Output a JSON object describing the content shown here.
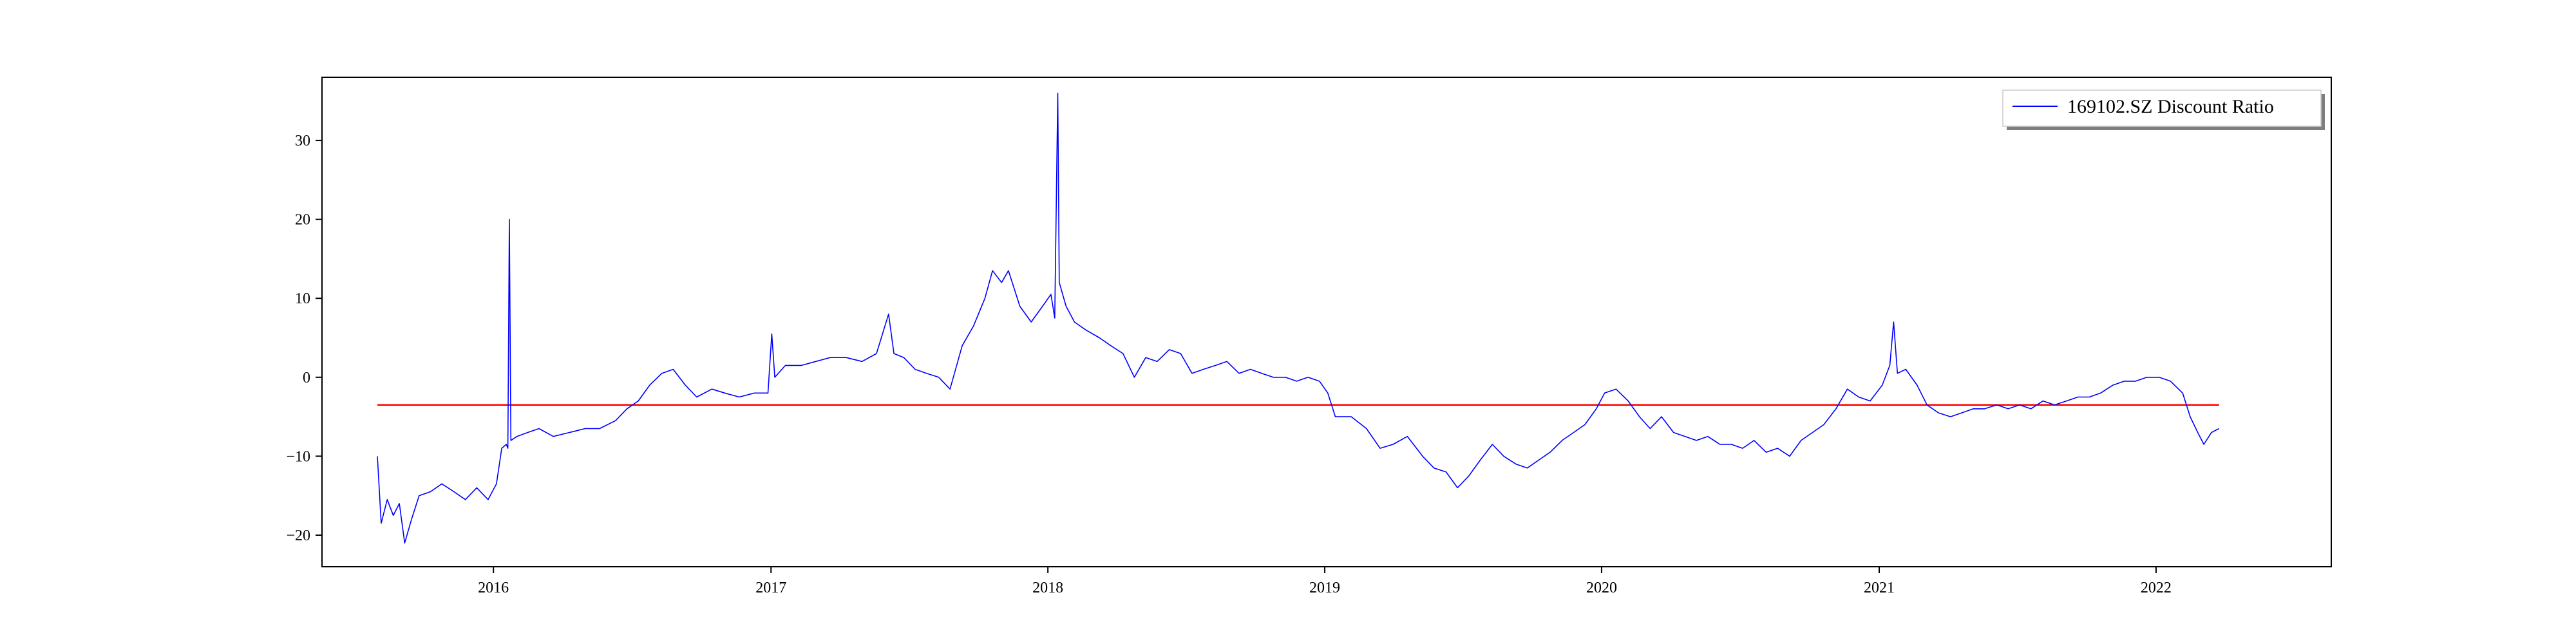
{
  "chart_data": {
    "type": "line",
    "title": "",
    "xlabel": "",
    "ylabel": "",
    "xlim": [
      "2015-05-20",
      "2022-08-20"
    ],
    "ylim": [
      -24,
      38
    ],
    "grid": false,
    "legend": {
      "placement": "top-right",
      "entries": [
        "169102.SZ Discount Ratio"
      ]
    },
    "x_ticks": [
      "2016",
      "2017",
      "2018",
      "2019",
      "2020",
      "2021",
      "2022"
    ],
    "y_ticks": [
      -20,
      -10,
      0,
      10,
      20,
      30
    ],
    "colors": {
      "series": "#0000ff",
      "reference": "#ff0000"
    },
    "series": [
      {
        "name": "169102.SZ Discount Ratio",
        "color": "#0000ff",
        "points": [
          [
            "2015-08-01",
            -10
          ],
          [
            "2015-08-06",
            -18.5
          ],
          [
            "2015-08-14",
            -15.5
          ],
          [
            "2015-08-22",
            -17.5
          ],
          [
            "2015-08-30",
            -16
          ],
          [
            "2015-09-06",
            -21
          ],
          [
            "2015-09-15",
            -18
          ],
          [
            "2015-09-25",
            -15
          ],
          [
            "2015-10-10",
            -14.5
          ],
          [
            "2015-10-25",
            -13.5
          ],
          [
            "2015-11-10",
            -14.5
          ],
          [
            "2015-11-25",
            -15.5
          ],
          [
            "2015-12-10",
            -14
          ],
          [
            "2015-12-25",
            -15.5
          ],
          [
            "2016-01-05",
            -13.5
          ],
          [
            "2016-01-12",
            -9
          ],
          [
            "2016-01-18",
            -8.5
          ],
          [
            "2016-01-20",
            -9
          ],
          [
            "2016-01-22",
            20
          ],
          [
            "2016-01-24",
            -8
          ],
          [
            "2016-02-01",
            -7.5
          ],
          [
            "2016-02-15",
            -7
          ],
          [
            "2016-03-01",
            -6.5
          ],
          [
            "2016-03-20",
            -7.5
          ],
          [
            "2016-04-10",
            -7
          ],
          [
            "2016-05-01",
            -6.5
          ],
          [
            "2016-05-20",
            -6.5
          ],
          [
            "2016-06-10",
            -5.5
          ],
          [
            "2016-06-25",
            -4
          ],
          [
            "2016-07-10",
            -3
          ],
          [
            "2016-07-25",
            -1
          ],
          [
            "2016-08-10",
            0.5
          ],
          [
            "2016-08-25",
            1
          ],
          [
            "2016-09-10",
            -1
          ],
          [
            "2016-09-25",
            -2.5
          ],
          [
            "2016-10-15",
            -1.5
          ],
          [
            "2016-11-01",
            -2
          ],
          [
            "2016-11-20",
            -2.5
          ],
          [
            "2016-12-10",
            -2
          ],
          [
            "2016-12-28",
            -2
          ],
          [
            "2017-01-02",
            5.5
          ],
          [
            "2017-01-06",
            0
          ],
          [
            "2017-01-20",
            1.5
          ],
          [
            "2017-02-10",
            1.5
          ],
          [
            "2017-03-01",
            2
          ],
          [
            "2017-03-20",
            2.5
          ],
          [
            "2017-04-10",
            2.5
          ],
          [
            "2017-05-01",
            2
          ],
          [
            "2017-05-20",
            3
          ],
          [
            "2017-06-05",
            8
          ],
          [
            "2017-06-12",
            3
          ],
          [
            "2017-06-25",
            2.5
          ],
          [
            "2017-07-10",
            1
          ],
          [
            "2017-07-25",
            0.5
          ],
          [
            "2017-08-10",
            0
          ],
          [
            "2017-08-25",
            -1.5
          ],
          [
            "2017-09-10",
            4
          ],
          [
            "2017-09-25",
            6.5
          ],
          [
            "2017-10-10",
            10
          ],
          [
            "2017-10-20",
            13.5
          ],
          [
            "2017-11-01",
            12
          ],
          [
            "2017-11-10",
            13.5
          ],
          [
            "2017-11-25",
            9
          ],
          [
            "2017-12-10",
            7
          ],
          [
            "2017-12-25",
            9
          ],
          [
            "2018-01-05",
            10.5
          ],
          [
            "2018-01-10",
            7.5
          ],
          [
            "2018-01-14",
            36
          ],
          [
            "2018-01-16",
            12
          ],
          [
            "2018-01-25",
            9
          ],
          [
            "2018-02-05",
            7
          ],
          [
            "2018-02-20",
            6
          ],
          [
            "2018-03-10",
            5
          ],
          [
            "2018-03-25",
            4
          ],
          [
            "2018-04-10",
            3
          ],
          [
            "2018-04-25",
            0
          ],
          [
            "2018-05-10",
            2.5
          ],
          [
            "2018-05-25",
            2
          ],
          [
            "2018-06-10",
            3.5
          ],
          [
            "2018-06-25",
            3
          ],
          [
            "2018-07-10",
            0.5
          ],
          [
            "2018-07-25",
            1
          ],
          [
            "2018-08-10",
            1.5
          ],
          [
            "2018-08-25",
            2
          ],
          [
            "2018-09-10",
            0.5
          ],
          [
            "2018-09-25",
            1
          ],
          [
            "2018-10-10",
            0.5
          ],
          [
            "2018-10-25",
            0
          ],
          [
            "2018-11-10",
            0
          ],
          [
            "2018-11-25",
            -0.5
          ],
          [
            "2018-12-10",
            0
          ],
          [
            "2018-12-25",
            -0.5
          ],
          [
            "2019-01-05",
            -2
          ],
          [
            "2019-01-15",
            -5
          ],
          [
            "2019-02-05",
            -5
          ],
          [
            "2019-02-25",
            -6.5
          ],
          [
            "2019-03-15",
            -9
          ],
          [
            "2019-04-01",
            -8.5
          ],
          [
            "2019-04-20",
            -7.5
          ],
          [
            "2019-05-10",
            -10
          ],
          [
            "2019-05-25",
            -11.5
          ],
          [
            "2019-06-10",
            -12
          ],
          [
            "2019-06-25",
            -14
          ],
          [
            "2019-07-10",
            -12.5
          ],
          [
            "2019-07-25",
            -10.5
          ],
          [
            "2019-08-10",
            -8.5
          ],
          [
            "2019-08-25",
            -10
          ],
          [
            "2019-09-10",
            -11
          ],
          [
            "2019-09-25",
            -11.5
          ],
          [
            "2019-10-10",
            -10.5
          ],
          [
            "2019-10-25",
            -9.5
          ],
          [
            "2019-11-10",
            -8
          ],
          [
            "2019-11-25",
            -7
          ],
          [
            "2019-12-10",
            -6
          ],
          [
            "2019-12-25",
            -4
          ],
          [
            "2020-01-05",
            -2
          ],
          [
            "2020-01-20",
            -1.5
          ],
          [
            "2020-02-05",
            -3
          ],
          [
            "2020-02-20",
            -5
          ],
          [
            "2020-03-05",
            -6.5
          ],
          [
            "2020-03-20",
            -5
          ],
          [
            "2020-04-05",
            -7
          ],
          [
            "2020-04-20",
            -7.5
          ],
          [
            "2020-05-05",
            -8
          ],
          [
            "2020-05-20",
            -7.5
          ],
          [
            "2020-06-05",
            -8.5
          ],
          [
            "2020-06-20",
            -8.5
          ],
          [
            "2020-07-05",
            -9
          ],
          [
            "2020-07-20",
            -8
          ],
          [
            "2020-08-05",
            -9.5
          ],
          [
            "2020-08-20",
            -9
          ],
          [
            "2020-09-05",
            -10
          ],
          [
            "2020-09-20",
            -8
          ],
          [
            "2020-10-05",
            -7
          ],
          [
            "2020-10-20",
            -6
          ],
          [
            "2020-11-05",
            -4
          ],
          [
            "2020-11-20",
            -1.5
          ],
          [
            "2020-12-05",
            -2.5
          ],
          [
            "2020-12-20",
            -3
          ],
          [
            "2021-01-05",
            -1
          ],
          [
            "2021-01-15",
            1.5
          ],
          [
            "2021-01-20",
            7
          ],
          [
            "2021-01-25",
            0.5
          ],
          [
            "2021-02-05",
            1
          ],
          [
            "2021-02-20",
            -1
          ],
          [
            "2021-03-05",
            -3.5
          ],
          [
            "2021-03-20",
            -4.5
          ],
          [
            "2021-04-05",
            -5
          ],
          [
            "2021-04-20",
            -4.5
          ],
          [
            "2021-05-05",
            -4
          ],
          [
            "2021-05-20",
            -4
          ],
          [
            "2021-06-05",
            -3.5
          ],
          [
            "2021-06-20",
            -4
          ],
          [
            "2021-07-05",
            -3.5
          ],
          [
            "2021-07-20",
            -4
          ],
          [
            "2021-08-05",
            -3
          ],
          [
            "2021-08-20",
            -3.5
          ],
          [
            "2021-09-05",
            -3
          ],
          [
            "2021-09-20",
            -2.5
          ],
          [
            "2021-10-05",
            -2.5
          ],
          [
            "2021-10-20",
            -2
          ],
          [
            "2021-11-05",
            -1
          ],
          [
            "2021-11-20",
            -0.5
          ],
          [
            "2021-12-05",
            -0.5
          ],
          [
            "2021-12-20",
            0
          ],
          [
            "2022-01-05",
            0
          ],
          [
            "2022-01-20",
            -0.5
          ],
          [
            "2022-02-05",
            -2
          ],
          [
            "2022-02-15",
            -5
          ],
          [
            "2022-02-25",
            -7
          ],
          [
            "2022-03-05",
            -8.5
          ],
          [
            "2022-03-15",
            -7
          ],
          [
            "2022-03-25",
            -6.5
          ]
        ]
      }
    ],
    "reference_line": {
      "y": -3.5,
      "x_range": [
        "2015-08-01",
        "2022-03-25"
      ],
      "color": "#ff0000"
    }
  }
}
